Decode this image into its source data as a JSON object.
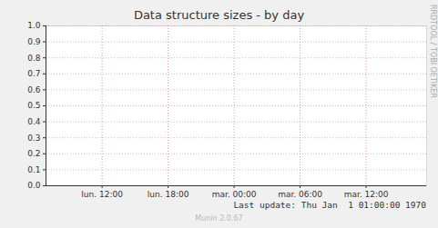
{
  "chart_data": {
    "type": "line",
    "title": "Data structure sizes - by day",
    "watermark": "RRDTOOL / TOBI OETIKER",
    "last_update": "Last update: Thu Jan  1 01:00:00 1970",
    "footer": "Munin 2.0.67",
    "x": [],
    "series": [],
    "xlim": [
      6.9,
      41.5
    ],
    "xticks": [
      {
        "value": 12,
        "label": "lun. 12:00"
      },
      {
        "value": 18,
        "label": "lun. 18:00"
      },
      {
        "value": 24,
        "label": "mar. 00:00"
      },
      {
        "value": 30,
        "label": "mar. 06:00"
      },
      {
        "value": 36,
        "label": "mar. 12:00"
      }
    ],
    "ylim": [
      0,
      1
    ],
    "yticks": [
      {
        "value": 0,
        "label": "0.0"
      },
      0.1,
      0.2,
      0.3,
      0.4,
      0.5,
      0.6,
      0.7,
      0.8,
      0.9,
      {
        "value": 1,
        "label": "1.0"
      }
    ],
    "grid": true
  }
}
